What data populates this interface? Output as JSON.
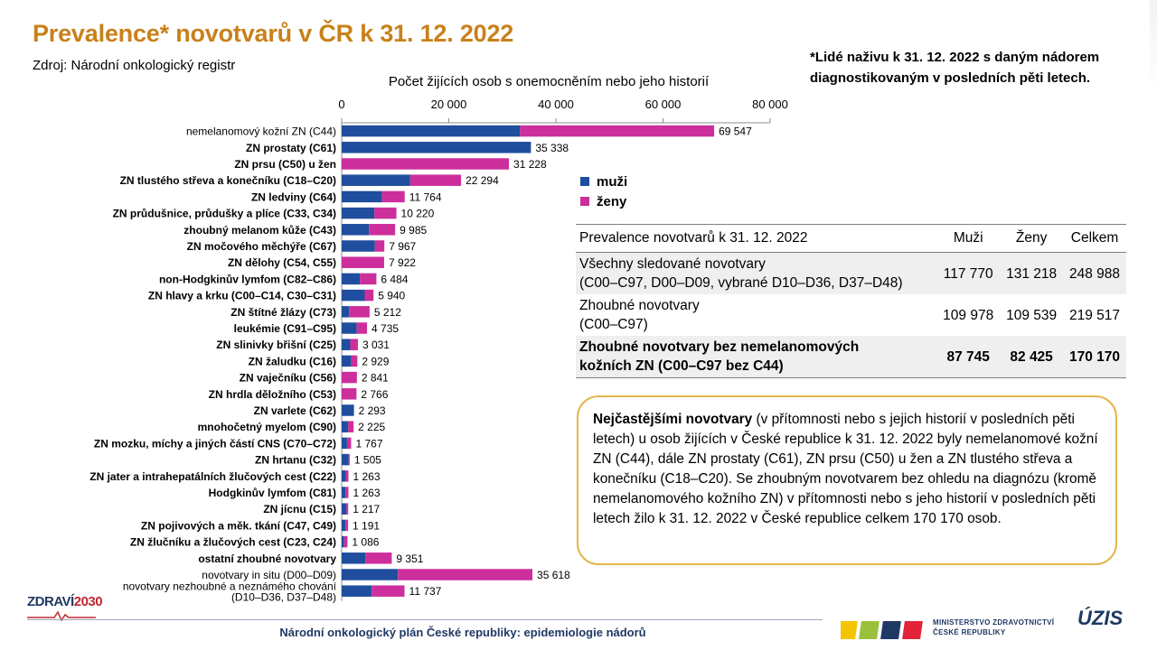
{
  "title": "Prevalence* novotvarů v ČR k 31. 12. 2022",
  "source": "Zdroj: Národní onkologický registr",
  "footnote": "*Lidé naživu k 31. 12. 2022 s daným nádorem diagnostikovaným v posledních pěti letech.",
  "chart_data": {
    "type": "bar",
    "orientation": "horizontal",
    "stacked": true,
    "title": "Počet žijících osob s onemocněním nebo jeho historií",
    "xlim": [
      0,
      80000
    ],
    "xticks": [
      0,
      20000,
      40000,
      60000,
      80000
    ],
    "xtick_labels": [
      "0",
      "20 000",
      "40 000",
      "60 000",
      "80 000"
    ],
    "legend_position": "right",
    "colors": {
      "men": "#1f4e9e",
      "women": "#cc2f9c"
    },
    "categories": [
      {
        "label": "nemelanomový  kožní ZN (C44)",
        "bold": false
      },
      {
        "label": "ZN prostaty (C61)",
        "bold": true
      },
      {
        "label": "ZN prsu (C50) u žen",
        "bold": true
      },
      {
        "label": "ZN tlustého střeva a konečníku (C18–C20)",
        "bold": true
      },
      {
        "label": "ZN ledviny (C64)",
        "bold": true
      },
      {
        "label": "ZN průdušnice, průdušky a plíce (C33, C34)",
        "bold": true
      },
      {
        "label": "zhoubný melanom kůže (C43)",
        "bold": true
      },
      {
        "label": "ZN močového měchýře (C67)",
        "bold": true
      },
      {
        "label": "ZN dělohy (C54, C55)",
        "bold": true
      },
      {
        "label": "non-Hodgkinův lymfom (C82–C86)",
        "bold": true
      },
      {
        "label": "ZN hlavy a krku (C00–C14, C30–C31)",
        "bold": true
      },
      {
        "label": "ZN štítné žlázy (C73)",
        "bold": true
      },
      {
        "label": "leukémie (C91–C95)",
        "bold": true
      },
      {
        "label": "ZN slinivky břišní (C25)",
        "bold": true
      },
      {
        "label": "ZN žaludku (C16)",
        "bold": true
      },
      {
        "label": "ZN vaječníku (C56)",
        "bold": true
      },
      {
        "label": "ZN hrdla děložního (C53)",
        "bold": true
      },
      {
        "label": "ZN varlete (C62)",
        "bold": true
      },
      {
        "label": "mnohočetný myelom (C90)",
        "bold": true
      },
      {
        "label": "ZN mozku, míchy a jiných částí CNS (C70–C72)",
        "bold": true
      },
      {
        "label": "ZN hrtanu (C32)",
        "bold": true
      },
      {
        "label": "ZN jater a intrahepatálních žlučových cest (C22)",
        "bold": true
      },
      {
        "label": "Hodgkinův lymfom (C81)",
        "bold": true
      },
      {
        "label": "ZN jícnu (C15)",
        "bold": true
      },
      {
        "label": "ZN pojivových a měk. tkání (C47, C49)",
        "bold": true
      },
      {
        "label": "ZN žlučníku a žlučových cest (C23, C24)",
        "bold": true
      },
      {
        "label": "ostatní zhoubné novotvary",
        "bold": true
      },
      {
        "label": "novotvary  in situ (D00–D09)",
        "bold": false
      },
      {
        "label": "novotvary  nezhoubné  a neznámého  chování (D10–D36, D37–D48)",
        "bold": false
      }
    ],
    "series": [
      {
        "name": "muži",
        "values": [
          33300,
          35338,
          0,
          12800,
          7500,
          6100,
          5100,
          6200,
          0,
          3400,
          4300,
          1400,
          2800,
          1600,
          1800,
          0,
          0,
          2293,
          1200,
          1000,
          1300,
          750,
          700,
          900,
          700,
          450,
          4400,
          10500,
          5600
        ]
      },
      {
        "name": "ženy",
        "values": [
          36247,
          0,
          31228,
          9494,
          4264,
          4120,
          4885,
          1767,
          7922,
          3084,
          1640,
          3812,
          1935,
          1431,
          1129,
          2841,
          2766,
          0,
          1025,
          767,
          205,
          513,
          563,
          317,
          491,
          636,
          4951,
          25118,
          6137
        ]
      }
    ],
    "totals": [
      69547,
      35338,
      31228,
      22294,
      11764,
      10220,
      9985,
      7967,
      7922,
      6484,
      5940,
      5212,
      4735,
      3031,
      2929,
      2841,
      2766,
      2293,
      2225,
      1767,
      1505,
      1263,
      1263,
      1217,
      1191,
      1086,
      9351,
      35618,
      11737
    ],
    "total_labels": [
      "69 547",
      "35 338",
      "31 228",
      "22 294",
      "11 764",
      "10 220",
      "9 985",
      "7 967",
      "7 922",
      "6 484",
      "5 940",
      "5 212",
      "4 735",
      "3 031",
      "2 929",
      "2 841",
      "2 766",
      "2 293",
      "2 225",
      "1 767",
      "1 505",
      "1 263",
      "1 263",
      "1 217",
      "1 191",
      "1 086",
      "9 351",
      "35 618",
      "11 737"
    ]
  },
  "legend": {
    "men": "muži",
    "women": "ženy"
  },
  "table": {
    "headers": [
      "Prevalence novotvarů k 31. 12. 2022",
      "Muži",
      "Ženy",
      "Celkem"
    ],
    "rows": [
      {
        "label_line1": "Všechny sledované novotvary",
        "label_line2": "(C00–C97, D00–D09, vybrané D10–D36, D37–D48)",
        "men": "117 770",
        "women": "131 218",
        "total": "248 988"
      },
      {
        "label_line1": "Zhoubné novotvary",
        "label_line2": "(C00–C97)",
        "men": "109 978",
        "women": "109 539",
        "total": "219 517"
      },
      {
        "label_line1": "Zhoubné novotvary bez nemelanomových",
        "label_line2": "kožních ZN (C00–C97 bez C44)",
        "men": "87 745",
        "women": "82 425",
        "total": "170 170"
      }
    ]
  },
  "note": {
    "lead": "Nejčastějšími novotvary",
    "text": " (v přítomnosti nebo s jejich historií v posledních pěti letech) u osob žijících v České republice k 31. 12. 2022 byly nemelanomové kožní ZN (C44), dále ZN prostaty (C61), ZN prsu (C50) u žen a ZN tlustého střeva a konečníku (C18–C20). Se zhoubným novotvarem bez ohledu na diagnózu (kromě nemelanomového kožního ZN) v přítomnosti nebo s jeho historií v posledních pěti letech žilo k 31. 12. 2022 v České republice celkem 170 170 osob."
  },
  "footer": {
    "text": "Národní onkologický plán České republiky: epidemiologie nádorů",
    "logo_left_a": "ZDRAVÍ",
    "logo_left_b": "2030",
    "ministry_line1": "MINISTERSTVO ZDRAVOTNICTVÍ",
    "ministry_line2": "ČESKÉ REPUBLIKY",
    "logo_right": "ÚZIS"
  }
}
